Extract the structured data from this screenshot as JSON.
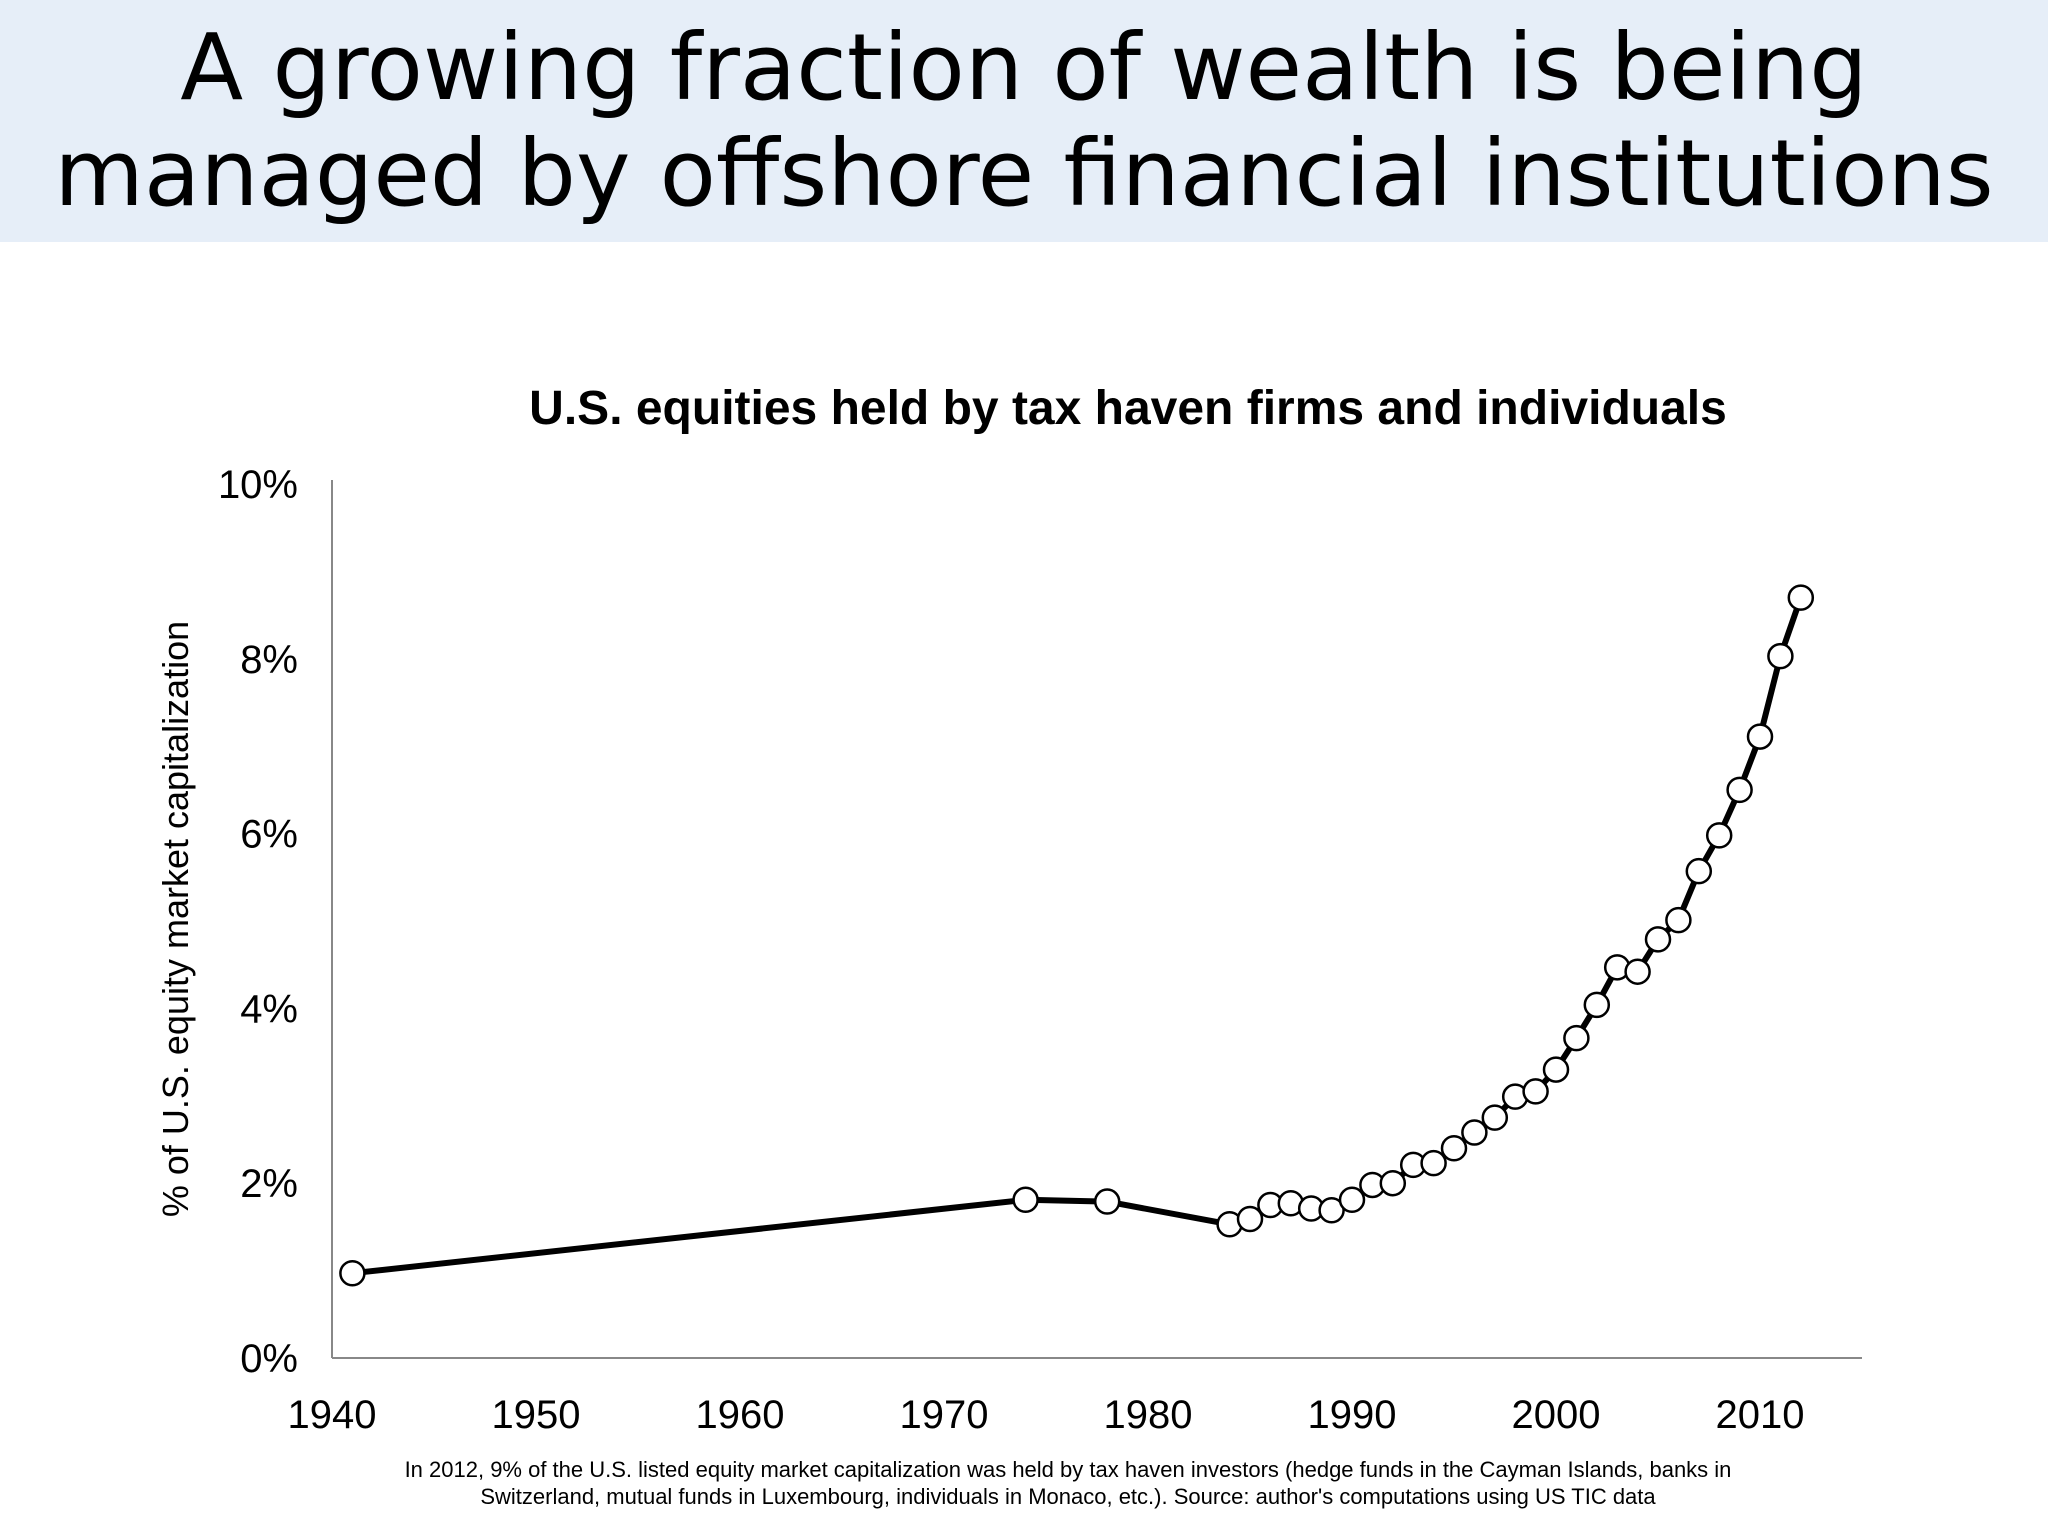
{
  "slide": {
    "title_lines": [
      "A growing fraction of wealth is being",
      "managed by offshore financial institutions"
    ]
  },
  "chart_data": {
    "type": "line",
    "title": "U.S. equities held by tax haven firms and individuals",
    "xlabel": "",
    "ylabel": "% of U.S. equity market capitalization",
    "xlim": [
      1940,
      2015
    ],
    "ylim": [
      0,
      10
    ],
    "x_ticks": [
      1940,
      1950,
      1960,
      1970,
      1980,
      1990,
      2000,
      2010
    ],
    "x_tick_labels": [
      "1940",
      "1950",
      "1960",
      "1970",
      "1980",
      "1990",
      "2000",
      "2010"
    ],
    "y_ticks": [
      0,
      2,
      4,
      6,
      8,
      10
    ],
    "y_tick_labels": [
      "0%",
      "2%",
      "4%",
      "6%",
      "8%",
      "10%"
    ],
    "grid": false,
    "legend": "none",
    "series": [
      {
        "color": "#000000",
        "marker": "open-circle",
        "points": [
          {
            "x": 1941,
            "y": 0.97
          },
          {
            "x": 1974,
            "y": 1.81
          },
          {
            "x": 1978,
            "y": 1.79
          },
          {
            "x": 1984,
            "y": 1.53
          },
          {
            "x": 1985,
            "y": 1.59
          },
          {
            "x": 1986,
            "y": 1.75
          },
          {
            "x": 1987,
            "y": 1.77
          },
          {
            "x": 1988,
            "y": 1.71
          },
          {
            "x": 1989,
            "y": 1.69
          },
          {
            "x": 1990,
            "y": 1.81
          },
          {
            "x": 1991,
            "y": 1.98
          },
          {
            "x": 1992,
            "y": 2.0
          },
          {
            "x": 1993,
            "y": 2.21
          },
          {
            "x": 1994,
            "y": 2.23
          },
          {
            "x": 1995,
            "y": 2.4
          },
          {
            "x": 1996,
            "y": 2.58
          },
          {
            "x": 1997,
            "y": 2.75
          },
          {
            "x": 1998,
            "y": 2.99
          },
          {
            "x": 1999,
            "y": 3.05
          },
          {
            "x": 2000,
            "y": 3.3
          },
          {
            "x": 2001,
            "y": 3.66
          },
          {
            "x": 2002,
            "y": 4.04
          },
          {
            "x": 2003,
            "y": 4.47
          },
          {
            "x": 2004,
            "y": 4.42
          },
          {
            "x": 2005,
            "y": 4.79
          },
          {
            "x": 2006,
            "y": 5.01
          },
          {
            "x": 2007,
            "y": 5.57
          },
          {
            "x": 2008,
            "y": 5.98
          },
          {
            "x": 2009,
            "y": 6.5
          },
          {
            "x": 2010,
            "y": 7.11
          },
          {
            "x": 2011,
            "y": 8.03
          },
          {
            "x": 2012,
            "y": 8.7
          }
        ]
      }
    ],
    "note_lines": [
      "In 2012, 9% of the U.S. listed equity market capitalization was held by tax haven investors (hedge funds in the Cayman Islands, banks in",
      "Switzerland, mutual funds in Luxembourg, individuals in Monaco, etc.). Source: author's computations using US TIC data"
    ]
  }
}
